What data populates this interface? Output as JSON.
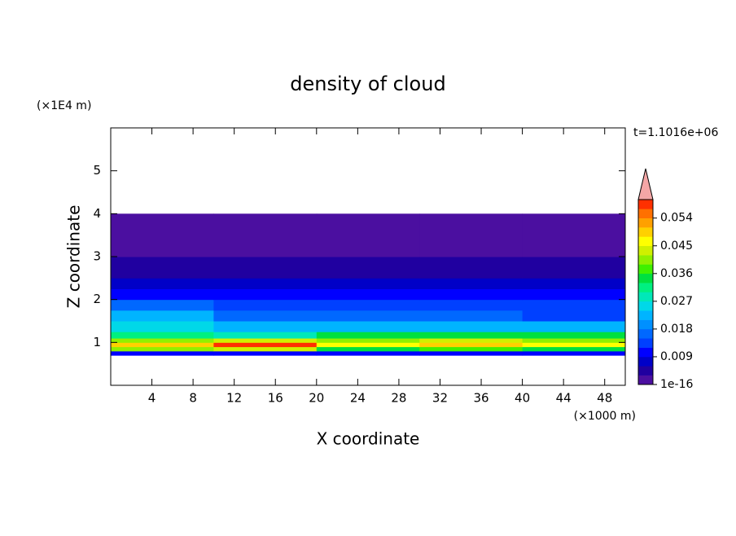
{
  "chart_data": {
    "type": "contour",
    "title": "density of cloud",
    "xlabel": "X coordinate",
    "xunit": "(×1000 m)",
    "ylabel": "Z coordinate",
    "yunit": "(×1E4 m)",
    "annotation": "t=1.1016e+06",
    "xlim": [
      0,
      50
    ],
    "xticks": [
      4,
      8,
      12,
      16,
      20,
      24,
      28,
      32,
      36,
      40,
      44,
      48
    ],
    "ylim": [
      0,
      6
    ],
    "yticks": [
      1,
      2,
      3,
      4,
      5
    ],
    "x_edges": [
      0,
      10,
      20,
      30,
      40,
      50
    ],
    "y_edges": [
      0.7,
      0.8,
      0.9,
      1.0,
      1.1,
      1.25,
      1.5,
      1.75,
      2.0,
      2.25,
      2.5,
      3.0,
      3.5,
      4.0
    ],
    "values": [
      [
        0.012,
        0.012,
        0.012,
        0.012,
        0.012
      ],
      [
        0.04,
        0.045,
        0.035,
        0.038,
        0.035
      ],
      [
        0.05,
        0.058,
        0.048,
        0.05,
        0.048
      ],
      [
        0.04,
        0.045,
        0.042,
        0.045,
        0.042
      ],
      [
        0.032,
        0.03,
        0.034,
        0.035,
        0.034
      ],
      [
        0.026,
        0.022,
        0.024,
        0.024,
        0.022
      ],
      [
        0.022,
        0.018,
        0.016,
        0.016,
        0.015
      ],
      [
        0.016,
        0.014,
        0.013,
        0.013,
        0.013
      ],
      [
        0.012,
        0.011,
        0.01,
        0.011,
        0.011
      ],
      [
        0.009,
        0.008,
        0.007,
        0.008,
        0.008
      ],
      [
        0.005,
        0.005,
        0.004,
        0.005,
        0.005
      ],
      [
        0.003,
        0.003,
        0.002,
        0.003,
        0.003
      ],
      [
        0.001,
        0.001,
        0.001,
        0.001,
        0.001
      ]
    ],
    "colorbar": {
      "clim": [
        1e-16,
        0.06
      ],
      "extend": "max",
      "ticks": [
        1e-16,
        0.009,
        0.018,
        0.027,
        0.036,
        0.045,
        0.054
      ],
      "colors": [
        "#4b0fa0",
        "#2000a0",
        "#0000c8",
        "#0000ff",
        "#0040ff",
        "#0068ff",
        "#0090ff",
        "#00b4ff",
        "#00d8e8",
        "#00e8b8",
        "#00f080",
        "#00e040",
        "#40f000",
        "#90f000",
        "#d0f000",
        "#ffff00",
        "#ffd000",
        "#ffa000",
        "#ff7000",
        "#ff3000",
        "#f4a6a6"
      ]
    }
  }
}
